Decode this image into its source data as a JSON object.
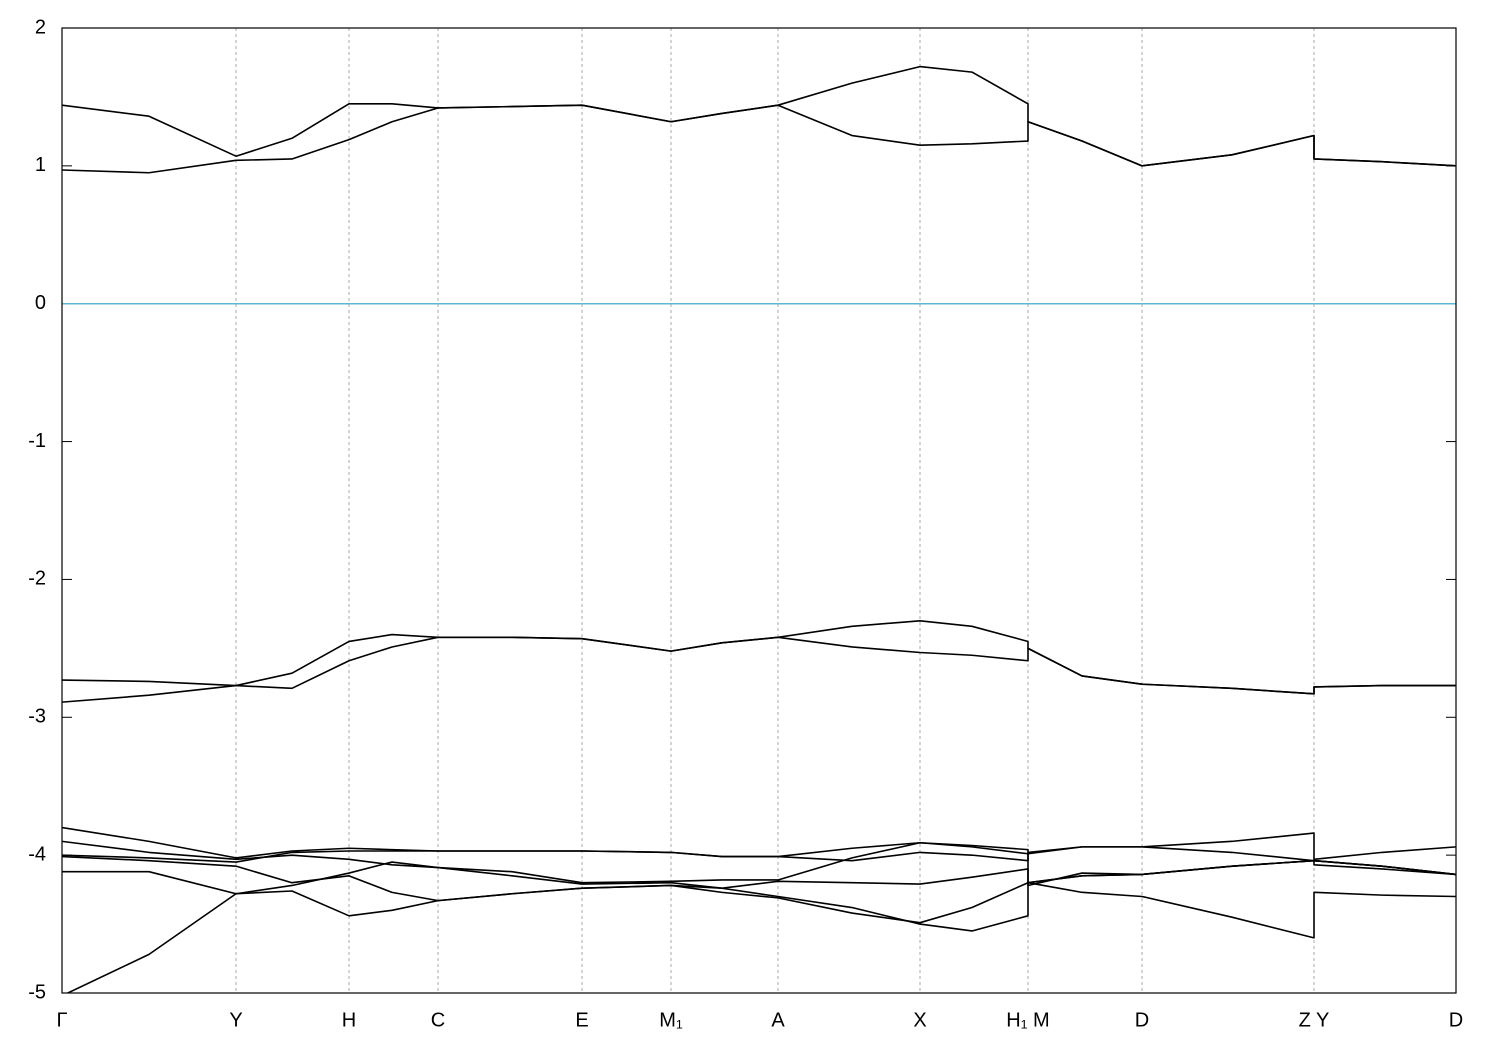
{
  "chart_data": {
    "type": "line",
    "x": [
      0,
      0.87,
      1.74,
      2.3,
      2.87,
      3.3,
      3.76,
      4.5,
      5.2,
      6.09,
      6.6,
      7.16,
      7.9,
      8.58,
      9.1,
      9.66,
      9.66,
      10.2,
      10.8,
      11.7,
      12.52,
      12.52,
      13.2,
      13.94
    ],
    "xlim": [
      0,
      13.94
    ],
    "xticks": [
      {
        "value": 0,
        "label": "Γ"
      },
      {
        "value": 1.74,
        "label": "Y"
      },
      {
        "value": 2.87,
        "label": "H"
      },
      {
        "value": 3.76,
        "label": "C"
      },
      {
        "value": 5.2,
        "label": "E"
      },
      {
        "value": 6.09,
        "label": "M₁"
      },
      {
        "value": 7.16,
        "label": "A"
      },
      {
        "value": 8.58,
        "label": "X"
      },
      {
        "value": 9.66,
        "label": "H₁ M"
      },
      {
        "value": 10.8,
        "label": "D"
      },
      {
        "value": 12.52,
        "label": "Z Y"
      },
      {
        "value": 13.94,
        "label": "D"
      }
    ],
    "ylim": [
      -5,
      2
    ],
    "yticks": [
      -5,
      -4,
      -3,
      -2,
      -1,
      0,
      1,
      2
    ],
    "grid": true,
    "hline": {
      "value": 0,
      "color": "#5bb8d0"
    },
    "series": [
      {
        "color": "#000000",
        "values": [
          1.44,
          1.36,
          1.07,
          1.2,
          1.45,
          1.45,
          1.42,
          1.43,
          1.44,
          1.32,
          1.38,
          1.44,
          1.6,
          1.72,
          1.68,
          1.45,
          1.32,
          1.18,
          1.0,
          1.08,
          1.22,
          1.05,
          1.03,
          1.0
        ]
      },
      {
        "color": "#000000",
        "values": [
          0.97,
          0.95,
          1.04,
          1.05,
          1.19,
          1.32,
          1.42,
          1.43,
          1.44,
          1.32,
          1.38,
          1.44,
          1.22,
          1.15,
          1.16,
          1.18,
          1.32,
          1.18,
          1.0,
          1.08,
          1.22,
          1.05,
          1.03,
          1.0
        ]
      },
      {
        "color": "#000000",
        "values": [
          -2.73,
          -2.74,
          -2.77,
          -2.68,
          -2.45,
          -2.4,
          -2.42,
          -2.42,
          -2.43,
          -2.52,
          -2.46,
          -2.42,
          -2.34,
          -2.3,
          -2.34,
          -2.45,
          -2.5,
          -2.7,
          -2.76,
          -2.79,
          -2.83,
          -2.78,
          -2.77,
          -2.77
        ]
      },
      {
        "color": "#000000",
        "values": [
          -2.89,
          -2.84,
          -2.77,
          -2.79,
          -2.59,
          -2.49,
          -2.42,
          -2.42,
          -2.43,
          -2.52,
          -2.46,
          -2.42,
          -2.49,
          -2.53,
          -2.55,
          -2.59,
          -2.5,
          -2.7,
          -2.76,
          -2.79,
          -2.83,
          -2.78,
          -2.77,
          -2.77
        ]
      },
      {
        "color": "#000000",
        "values": [
          -3.8,
          -3.9,
          -4.02,
          -3.97,
          -3.95,
          -3.96,
          -3.97,
          -3.97,
          -3.97,
          -3.98,
          -4.01,
          -4.01,
          -3.95,
          -3.91,
          -3.93,
          -3.96,
          -3.99,
          -3.94,
          -3.94,
          -3.9,
          -3.84,
          -4.03,
          -3.98,
          -3.94
        ]
      },
      {
        "color": "#000000",
        "values": [
          -3.9,
          -3.98,
          -4.03,
          -4.0,
          -4.03,
          -4.07,
          -4.09,
          -4.12,
          -4.2,
          -4.19,
          -4.18,
          -4.18,
          -4.02,
          -3.91,
          -3.94,
          -3.99,
          -4.2,
          -4.15,
          -4.14,
          -4.08,
          -4.04,
          -4.04,
          -4.08,
          -4.14
        ]
      },
      {
        "color": "#000000",
        "values": [
          -4.0,
          -4.02,
          -4.05,
          -3.98,
          -3.97,
          -3.97,
          -3.97,
          -3.97,
          -3.97,
          -3.98,
          -4.01,
          -4.01,
          -4.04,
          -3.98,
          -4.0,
          -4.04,
          -3.98,
          -3.94,
          -3.94,
          -3.98,
          -4.04,
          -4.07,
          -4.1,
          -4.14
        ]
      },
      {
        "color": "#000000",
        "values": [
          -4.01,
          -4.04,
          -4.08,
          -4.2,
          -4.15,
          -4.27,
          -4.33,
          -4.28,
          -4.24,
          -4.22,
          -4.27,
          -4.31,
          -4.42,
          -4.49,
          -4.38,
          -4.2,
          -4.2,
          -4.27,
          -4.3,
          -4.45,
          -4.6,
          -4.27,
          -4.29,
          -4.3
        ]
      },
      {
        "color": "#000000",
        "values": [
          -4.12,
          -4.12,
          -4.28,
          -4.26,
          -4.44,
          -4.4,
          -4.33,
          -4.28,
          -4.24,
          -4.22,
          -4.24,
          -4.19,
          -4.2,
          -4.21,
          -4.16,
          -4.1,
          -4.22,
          -4.13,
          -4.14,
          -4.08,
          -4.04,
          -4.04,
          -4.08,
          -4.14
        ]
      },
      {
        "color": "#000000",
        "values": [
          -5.02,
          -4.72,
          -4.28,
          -4.22,
          -4.13,
          -4.05,
          -4.09,
          -4.15,
          -4.21,
          -4.2,
          -4.24,
          -4.3,
          -4.38,
          -4.5,
          -4.55,
          -4.44,
          -4.2,
          -4.15,
          -4.14,
          -4.08,
          -4.04,
          -4.04,
          -4.08,
          -4.14
        ]
      }
    ]
  }
}
